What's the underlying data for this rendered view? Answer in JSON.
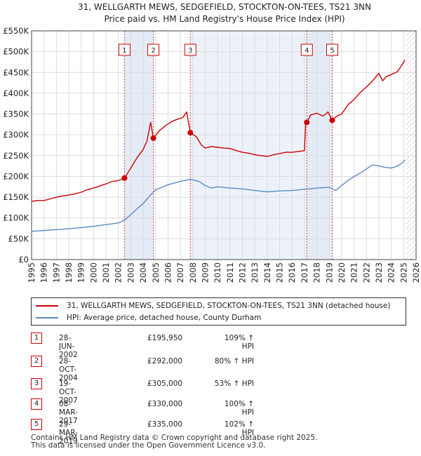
{
  "chart_data": {
    "type": "line",
    "title": "31, WELLGARTH MEWS, SEDGEFIELD, STOCKTON-ON-TEES, TS21 3NN",
    "subtitle": "Price paid vs. HM Land Registry's House Price Index (HPI)",
    "xlim": [
      1995,
      2026
    ],
    "ylim": [
      0,
      550000
    ],
    "y_ticks": [
      0,
      50000,
      100000,
      150000,
      200000,
      250000,
      300000,
      350000,
      400000,
      450000,
      500000,
      550000
    ],
    "y_tick_labels": [
      "£0",
      "£50K",
      "£100K",
      "£150K",
      "£200K",
      "£250K",
      "£300K",
      "£350K",
      "£400K",
      "£450K",
      "£500K",
      "£550K"
    ],
    "x_ticks": [
      1995,
      1996,
      1997,
      1998,
      1999,
      2000,
      2001,
      2002,
      2003,
      2004,
      2005,
      2006,
      2007,
      2008,
      2009,
      2010,
      2011,
      2012,
      2013,
      2014,
      2015,
      2016,
      2017,
      2018,
      2019,
      2020,
      2021,
      2022,
      2023,
      2024,
      2025,
      2026
    ],
    "x_tick_labels": [
      "1995",
      "1996",
      "1997",
      "1998",
      "1999",
      "2000",
      "2001",
      "2002",
      "2003",
      "2004",
      "2005",
      "2006",
      "2007",
      "2008",
      "2009",
      "2010",
      "2011",
      "2012",
      "2013",
      "2014",
      "2015",
      "2016",
      "2017",
      "2018",
      "2019",
      "2020",
      "2021",
      "2022",
      "2023",
      "2024",
      "2025",
      "2026"
    ],
    "grid": true,
    "hatched_future_from": 2025.2,
    "series": [
      {
        "name": "31, WELLGARTH MEWS, SEDGEFIELD, STOCKTON-ON-TEES, TS21 3NN (detached house)",
        "color": "#cc0000",
        "x": [
          1995.0,
          1995.5,
          1996.0,
          1996.5,
          1997.0,
          1997.5,
          1998.0,
          1998.5,
          1999.0,
          1999.5,
          2000.0,
          2000.5,
          2001.0,
          2001.5,
          2002.0,
          2002.49,
          2003.0,
          2003.5,
          2004.0,
          2004.3,
          2004.6,
          2004.82,
          2005.3,
          2005.8,
          2006.3,
          2006.8,
          2007.2,
          2007.5,
          2007.8,
          2008.3,
          2008.7,
          2009.0,
          2009.5,
          2010.0,
          2010.5,
          2011.0,
          2011.5,
          2012.0,
          2012.5,
          2013.0,
          2013.5,
          2014.0,
          2014.5,
          2015.0,
          2015.5,
          2016.0,
          2016.5,
          2017.0,
          2017.1,
          2017.19,
          2017.5,
          2018.0,
          2018.5,
          2018.9,
          2019.24,
          2019.6,
          2020.0,
          2020.5,
          2021.0,
          2021.5,
          2022.0,
          2022.5,
          2023.0,
          2023.3,
          2023.6,
          2024.0,
          2024.5,
          2024.9,
          2025.1
        ],
        "values": [
          140000,
          142000,
          142000,
          146000,
          150000,
          153000,
          155000,
          158000,
          162000,
          168000,
          172000,
          177000,
          182000,
          188000,
          190000,
          195950,
          220000,
          245000,
          265000,
          285000,
          330000,
          292000,
          310000,
          322000,
          332000,
          338000,
          342000,
          355000,
          305000,
          295000,
          275000,
          268000,
          272000,
          270000,
          268000,
          267000,
          262000,
          258000,
          256000,
          252000,
          250000,
          248000,
          252000,
          255000,
          258000,
          258000,
          260000,
          262000,
          330000,
          330000,
          348000,
          352000,
          345000,
          355000,
          335000,
          345000,
          350000,
          372000,
          385000,
          402000,
          415000,
          430000,
          448000,
          430000,
          440000,
          445000,
          452000,
          470000,
          480000
        ]
      },
      {
        "name": "HPI: Average price, detached house, County Durham",
        "color": "#5b8ac6",
        "x": [
          1995.0,
          1996.0,
          1997.0,
          1998.0,
          1999.0,
          2000.0,
          2001.0,
          2002.0,
          2002.5,
          2003.0,
          2003.5,
          2004.0,
          2004.5,
          2005.0,
          2006.0,
          2007.0,
          2007.8,
          2008.5,
          2009.0,
          2009.5,
          2010.0,
          2011.0,
          2012.0,
          2013.0,
          2014.0,
          2015.0,
          2016.0,
          2017.0,
          2018.0,
          2019.0,
          2019.5,
          2020.0,
          2020.5,
          2021.0,
          2021.5,
          2022.0,
          2022.5,
          2023.0,
          2023.5,
          2024.0,
          2024.5,
          2025.0,
          2025.1
        ],
        "values": [
          68000,
          70000,
          72000,
          74000,
          77000,
          80000,
          84000,
          88000,
          95000,
          108000,
          122000,
          135000,
          152000,
          168000,
          180000,
          188000,
          193000,
          188000,
          178000,
          172000,
          175000,
          172000,
          170000,
          166000,
          163000,
          165000,
          166000,
          169000,
          172000,
          174000,
          166000,
          178000,
          190000,
          200000,
          208000,
          218000,
          228000,
          225000,
          222000,
          220000,
          225000,
          235000,
          240000
        ]
      }
    ],
    "sales": [
      {
        "label": "1",
        "x": 2002.49,
        "value": 195950
      },
      {
        "label": "2",
        "x": 2004.82,
        "value": 292000
      },
      {
        "label": "3",
        "x": 2007.8,
        "value": 305000
      },
      {
        "label": "4",
        "x": 2017.19,
        "value": 330000
      },
      {
        "label": "5",
        "x": 2019.24,
        "value": 335000
      }
    ]
  },
  "table": [
    {
      "num": "1",
      "date": "28-JUN-2002",
      "price": "£195,950",
      "hpi": "109% ↑ HPI"
    },
    {
      "num": "2",
      "date": "28-OCT-2004",
      "price": "£292,000",
      "hpi": "80% ↑ HPI"
    },
    {
      "num": "3",
      "date": "19-OCT-2007",
      "price": "£305,000",
      "hpi": "53% ↑ HPI"
    },
    {
      "num": "4",
      "date": "08-MAR-2017",
      "price": "£330,000",
      "hpi": "100% ↑ HPI"
    },
    {
      "num": "5",
      "date": "29-MAR-2019",
      "price": "£335,000",
      "hpi": "102% ↑ HPI"
    }
  ],
  "footer": {
    "line1": "Contains HM Land Registry data © Crown copyright and database right 2025.",
    "line2": "This data is licensed under the Open Government Licence v3.0."
  }
}
